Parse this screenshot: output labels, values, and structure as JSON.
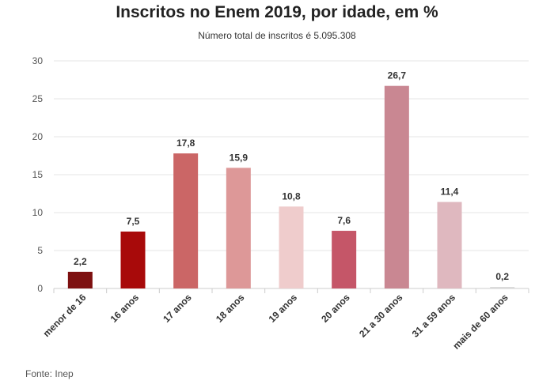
{
  "chart_data": {
    "type": "bar",
    "title": "Inscritos no Enem 2019, por idade, em %",
    "subtitle": "Número total de inscritos é 5.095.308",
    "source": "Fonte: Inep",
    "categories": [
      "menor de 16",
      "16 anos",
      "17 anos",
      "18 anos",
      "19 anos",
      "20 anos",
      "21 a 30 anos",
      "31 a 59 anos",
      "mais de 60 anos"
    ],
    "values": [
      2.2,
      7.5,
      17.8,
      15.9,
      10.8,
      7.6,
      26.7,
      11.4,
      0.2
    ],
    "value_labels": [
      "2,2",
      "7,5",
      "17,8",
      "15,9",
      "10,8",
      "7,6",
      "26,7",
      "11,4",
      "0,2"
    ],
    "bar_colors": [
      "#7d1010",
      "#a80a0a",
      "#cb6666",
      "#dd9898",
      "#efcccc",
      "#c55668",
      "#c98792",
      "#dfb8bf",
      "#d9d9d9"
    ],
    "yticks": [
      0,
      5,
      10,
      15,
      20,
      25,
      30
    ],
    "ylim": [
      0,
      30
    ],
    "grid": true,
    "legend": "none"
  }
}
